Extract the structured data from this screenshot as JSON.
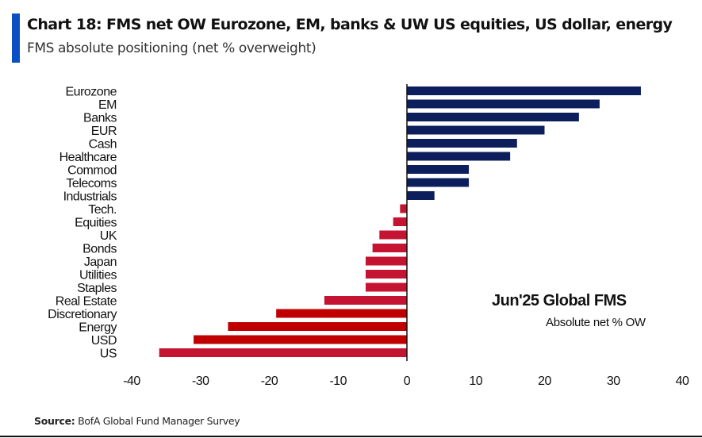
{
  "header": {
    "title": "Chart 18: FMS net OW Eurozone, EM, banks & UW US equities, US dollar, energy",
    "subtitle": "FMS absolute positioning (net % overweight)"
  },
  "footer": {
    "source_label": "Source:",
    "source_text": " BofA Global Fund Manager Survey"
  },
  "colors": {
    "accent": "#0b4fc4",
    "positive": "#0c1f5c",
    "negative": "#c41431",
    "negative_highlight": "#c00000"
  },
  "chart_data": {
    "type": "bar",
    "orientation": "horizontal",
    "title": "Chart 18: FMS net OW Eurozone, EM, banks & UW US equities, US dollar, energy",
    "subtitle": "FMS absolute positioning (net % overweight)",
    "xlabel": "",
    "ylabel": "",
    "xlim": [
      -40,
      40
    ],
    "xticks": [
      -40,
      -30,
      -20,
      -10,
      0,
      10,
      20,
      30,
      40
    ],
    "grid": false,
    "legend": "none",
    "annotation": {
      "title": "Jun'25 Global FMS",
      "subtitle": "Absolute net % OW"
    },
    "categories": [
      "Eurozone",
      "EM",
      "Banks",
      "EUR",
      "Cash",
      "Healthcare",
      "Commod",
      "Telecoms",
      "Industrials",
      "Tech.",
      "Equities",
      "UK",
      "Bonds",
      "Japan",
      "Utilities",
      "Staples",
      "Real Estate",
      "Discretionary",
      "Energy",
      "USD",
      "US"
    ],
    "values": [
      34,
      28,
      25,
      20,
      16,
      15,
      9,
      9,
      4,
      -1,
      -2,
      -4,
      -5,
      -6,
      -6,
      -6,
      -12,
      -19,
      -26,
      -31,
      -36
    ],
    "highlighted": [
      "Discretionary",
      "Energy",
      "USD"
    ]
  }
}
